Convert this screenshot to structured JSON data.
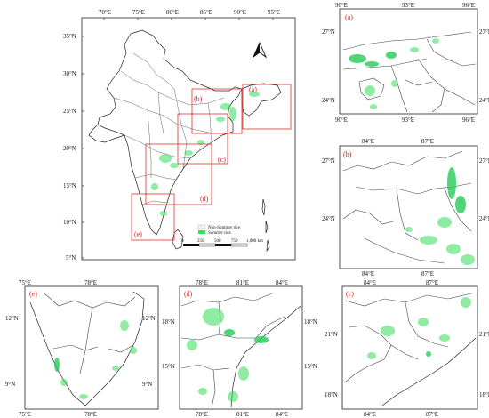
{
  "main_map": {
    "lon_ticks": [
      "70°E",
      "75°E",
      "80°E",
      "85°E",
      "90°E",
      "95°E"
    ],
    "lat_ticks": [
      "35°N",
      "30°N",
      "25°N",
      "20°N",
      "15°N",
      "10°N",
      "5°N"
    ],
    "region_labels": [
      "(a)",
      "(b)",
      "(c)",
      "(d)",
      "(e)"
    ],
    "north_arrow_icon": "north-arrow-icon",
    "legend": {
      "non_summer": "Non-Summer rice",
      "summer": "Summer rice",
      "summer_color": "#33dd55",
      "scale_labels": [
        "0",
        "250",
        "500",
        "750",
        "1,000  km"
      ]
    }
  },
  "panels": {
    "a": {
      "label": "(a)",
      "top_ticks": [
        "90°E",
        "93°E",
        "96°E"
      ],
      "bottom_ticks": [
        "90°E",
        "93°E",
        "96°E"
      ],
      "left_ticks": [
        "27°N",
        "24°N"
      ],
      "right_ticks": [
        "27°N",
        "24°N"
      ]
    },
    "b": {
      "label": "(b)",
      "top_ticks": [
        "84°E",
        "87°E"
      ],
      "bottom_ticks": [
        "84°E",
        "87°E"
      ],
      "left_ticks": [
        "27°N",
        "24°N"
      ],
      "right_ticks": [
        "27°N",
        "24°N"
      ]
    },
    "c": {
      "label": "(c)",
      "top_ticks": [
        "84°E",
        "87°E"
      ],
      "bottom_ticks": [
        "84°E",
        "87°E"
      ],
      "left_ticks": [
        "21°N",
        "18°N"
      ],
      "right_ticks": [
        "21°N",
        "18°N"
      ]
    },
    "d": {
      "label": "(d)",
      "top_ticks": [
        "78°E",
        "81°E",
        "84°E"
      ],
      "bottom_ticks": [
        "78°E",
        "81°E",
        "84°E"
      ],
      "left_ticks": [
        "18°N",
        "15°N"
      ],
      "right_ticks": [
        "18°N",
        "15°N"
      ]
    },
    "e": {
      "label": "(e)",
      "top_ticks": [
        "75°E",
        "78°E"
      ],
      "bottom_ticks": [
        "75°E",
        "78°E"
      ],
      "left_ticks": [
        "12°N",
        "9°N"
      ],
      "right_ticks": [
        "12°N",
        "9°N"
      ]
    }
  },
  "colors": {
    "boxes": "#e0302a",
    "summer_rice": "#33dd55",
    "labels": "#dd2222"
  }
}
